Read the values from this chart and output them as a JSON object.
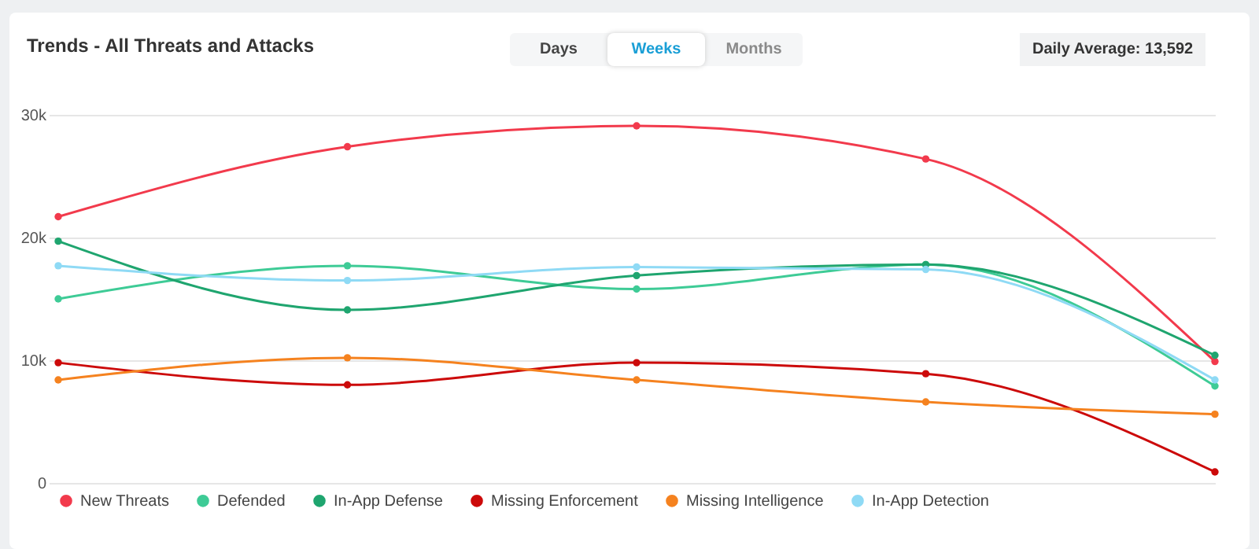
{
  "chart_data": {
    "type": "line",
    "title": "Trends - All Threats and Attacks",
    "annotations": [
      "Days",
      "Weeks",
      "Months",
      "Daily Average: 13,592"
    ],
    "categories": [
      null,
      null,
      null,
      null,
      null
    ],
    "series": [
      {
        "name": "New Threats",
        "color": "#f23a4c",
        "values": [
          21.7,
          27.4,
          29.1,
          26.4,
          9.9
        ]
      },
      {
        "name": "Defended",
        "color": "#3ecb96",
        "values": [
          15.0,
          17.7,
          15.8,
          17.8,
          7.9
        ]
      },
      {
        "name": "In-App Defense",
        "color": "#1fa56f",
        "values": [
          19.7,
          14.1,
          16.9,
          17.8,
          10.4
        ]
      },
      {
        "name": "Missing Enforcement",
        "color": "#cc0a0a",
        "values": [
          9.8,
          8.0,
          9.8,
          8.9,
          0.9
        ]
      },
      {
        "name": "Missing Intelligence",
        "color": "#f5821f",
        "values": [
          8.4,
          10.2,
          8.4,
          6.6,
          5.6
        ]
      },
      {
        "name": "In-App Detection",
        "color": "#8fdaf5",
        "values": [
          17.7,
          16.5,
          17.6,
          17.4,
          8.4
        ]
      }
    ],
    "ylim": [
      0,
      30
    ],
    "yticks": [
      {
        "value": 0,
        "label": "0"
      },
      {
        "value": 10,
        "label": "10k"
      },
      {
        "value": 20,
        "label": "20k"
      },
      {
        "value": 30,
        "label": "30k"
      }
    ],
    "grid": "y",
    "legend": "bottom",
    "tick_labels": "y",
    "marker": "circle",
    "line_style": "solid"
  }
}
